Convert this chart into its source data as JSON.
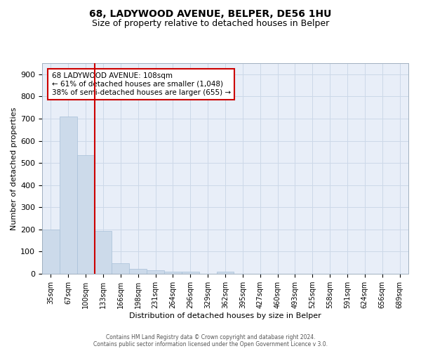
{
  "title1": "68, LADYWOOD AVENUE, BELPER, DE56 1HU",
  "title2": "Size of property relative to detached houses in Belper",
  "xlabel": "Distribution of detached houses by size in Belper",
  "ylabel": "Number of detached properties",
  "bar_labels": [
    "35sqm",
    "67sqm",
    "100sqm",
    "133sqm",
    "166sqm",
    "198sqm",
    "231sqm",
    "264sqm",
    "296sqm",
    "329sqm",
    "362sqm",
    "395sqm",
    "427sqm",
    "460sqm",
    "493sqm",
    "525sqm",
    "558sqm",
    "591sqm",
    "624sqm",
    "656sqm",
    "689sqm"
  ],
  "bar_values": [
    200,
    710,
    535,
    192,
    46,
    21,
    16,
    11,
    8,
    0,
    8,
    0,
    0,
    0,
    0,
    0,
    0,
    0,
    0,
    0,
    0
  ],
  "bar_color": "#ccdaea",
  "bar_edge_color": "#a8c0d8",
  "property_line_color": "#cc0000",
  "annotation_text": "68 LADYWOOD AVENUE: 108sqm\n← 61% of detached houses are smaller (1,048)\n38% of semi-detached houses are larger (655) →",
  "annotation_box_color": "#ffffff",
  "annotation_box_edge": "#cc0000",
  "footer1": "Contains HM Land Registry data © Crown copyright and database right 2024.",
  "footer2": "Contains public sector information licensed under the Open Government Licence v 3.0.",
  "ylim": [
    0,
    950
  ],
  "yticks": [
    0,
    100,
    200,
    300,
    400,
    500,
    600,
    700,
    800,
    900
  ],
  "grid_color": "#ccd8e8",
  "background_color": "#e8eef8"
}
